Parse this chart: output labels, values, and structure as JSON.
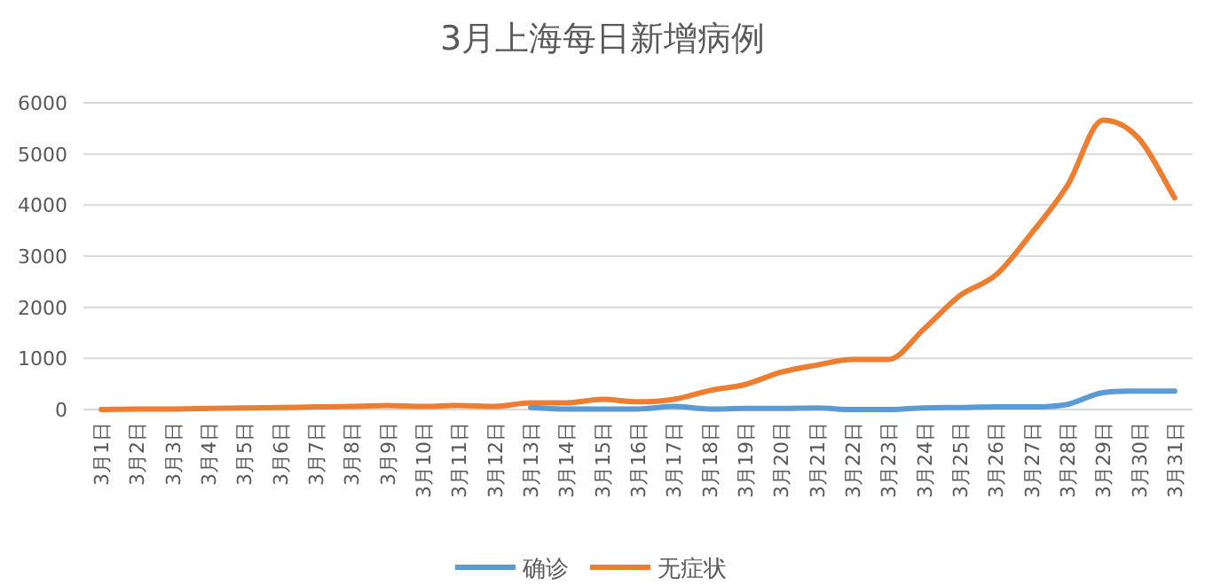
{
  "chart_data": {
    "type": "line",
    "title": "3月上海每日新增病例",
    "categories": [
      "3月1日",
      "3月2日",
      "3月3日",
      "3月4日",
      "3月5日",
      "3月6日",
      "3月7日",
      "3月8日",
      "3月9日",
      "3月10日",
      "3月11日",
      "3月12日",
      "3月13日",
      "3月14日",
      "3月15日",
      "3月16日",
      "3月17日",
      "3月18日",
      "3月19日",
      "3月20日",
      "3月21日",
      "3月22日",
      "3月23日",
      "3月24日",
      "3月25日",
      "3月26日",
      "3月27日",
      "3月28日",
      "3月29日",
      "3月30日",
      "3月31日"
    ],
    "series": [
      {
        "name": "确诊",
        "color": "#5b9bd5",
        "values": [
          null,
          null,
          null,
          null,
          null,
          null,
          null,
          null,
          null,
          null,
          null,
          null,
          40,
          10,
          10,
          10,
          60,
          10,
          20,
          20,
          30,
          0,
          0,
          30,
          40,
          50,
          50,
          100,
          330,
          360,
          360
        ]
      },
      {
        "name": "无症状",
        "color": "#ed7d31",
        "values": [
          0,
          10,
          10,
          20,
          30,
          40,
          50,
          60,
          80,
          60,
          80,
          60,
          130,
          130,
          200,
          150,
          200,
          370,
          490,
          730,
          870,
          980,
          980,
          1580,
          2230,
          2630,
          3450,
          4380,
          5660,
          5300,
          4140
        ]
      }
    ],
    "ylim": [
      0,
      6000
    ],
    "yticks": [
      0,
      1000,
      2000,
      3000,
      4000,
      5000,
      6000
    ],
    "grid": "y",
    "legend": "bottom",
    "marker": "none",
    "line_style": "solid"
  }
}
